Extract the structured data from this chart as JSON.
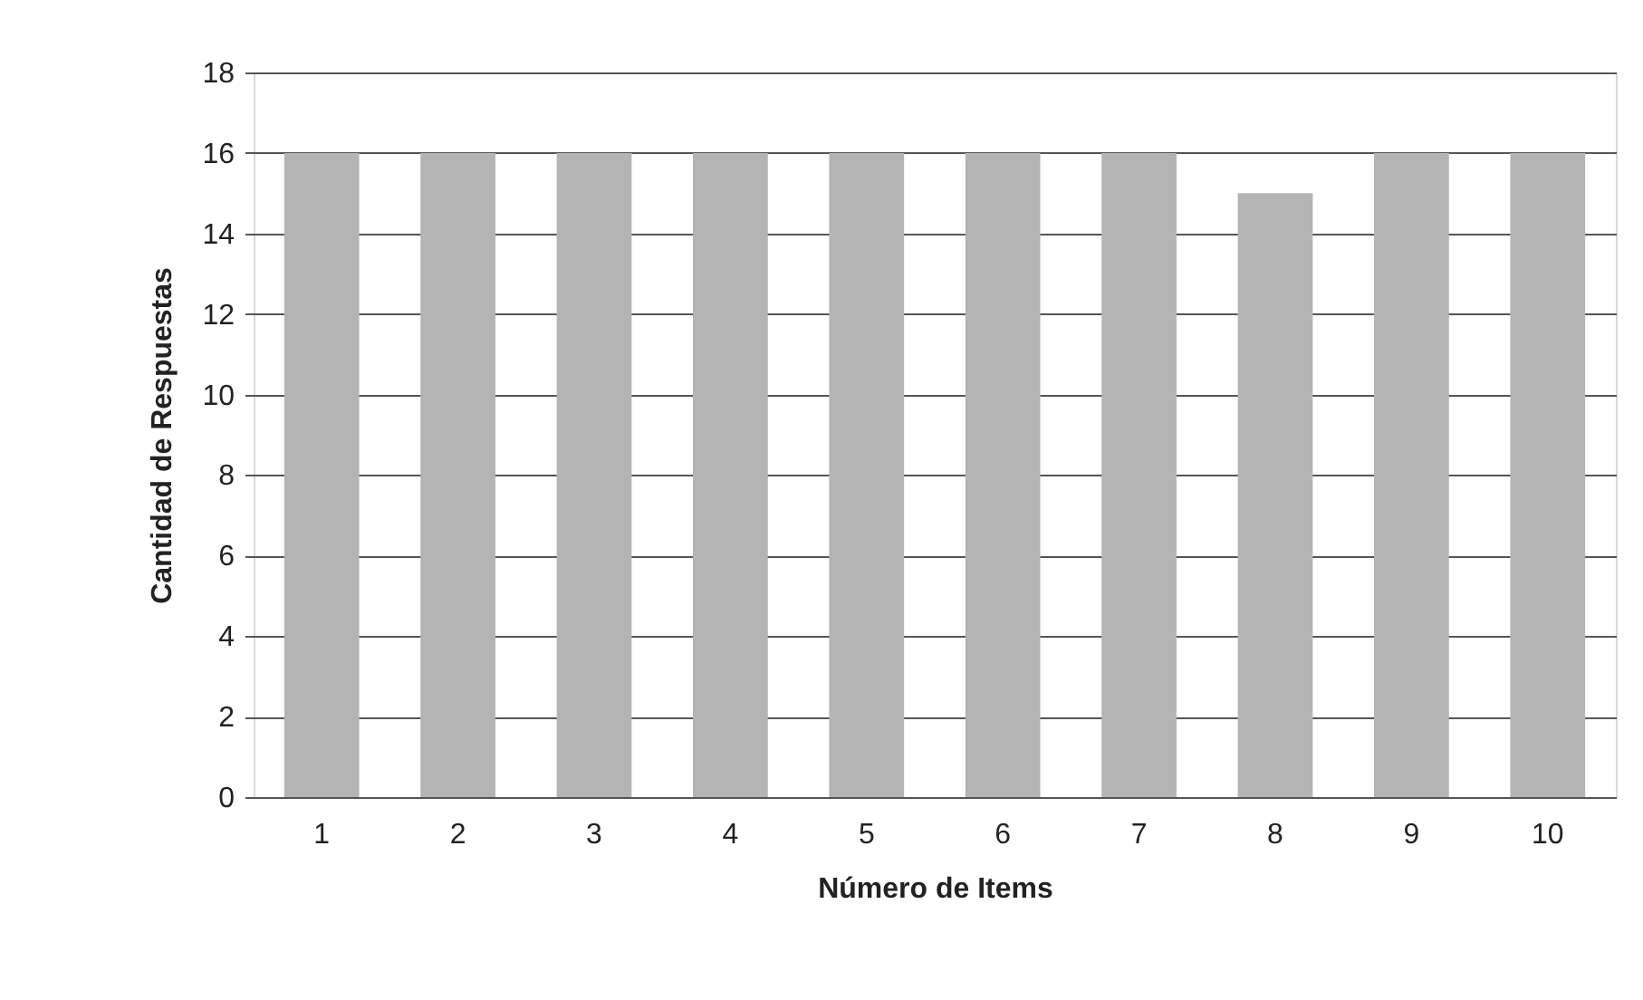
{
  "chart_data": {
    "type": "bar",
    "xlabel": "Número de Items",
    "ylabel": "Cantidad de Respuestas",
    "categories": [
      "1",
      "2",
      "3",
      "4",
      "5",
      "6",
      "7",
      "8",
      "9",
      "10"
    ],
    "values": [
      16,
      16,
      16,
      16,
      16,
      16,
      16,
      15,
      16,
      16
    ],
    "color": "#b4b4b4",
    "ylim": [
      0,
      18
    ],
    "yticks": [
      0,
      2,
      4,
      6,
      8,
      10,
      12,
      14,
      16,
      18
    ],
    "grid": "y"
  }
}
